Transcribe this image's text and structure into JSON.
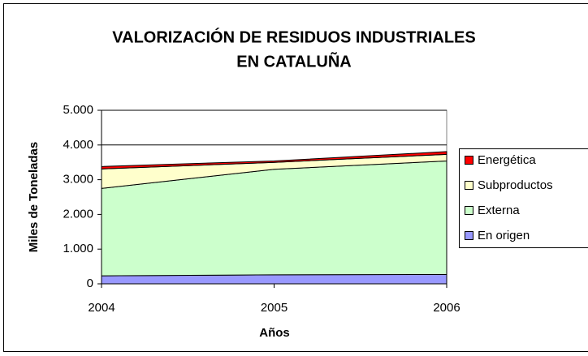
{
  "chart_data": {
    "type": "stacked_area",
    "title": [
      "VALORIZACIÓN DE RESIDUOS INDUSTRIALES",
      "EN CATALUÑA"
    ],
    "x_label": "Años",
    "y_label": "Miles de Toneladas",
    "categories": [
      "2004",
      "2005",
      "2006"
    ],
    "series": [
      {
        "name": "En origen",
        "color": "#9999ff",
        "values": [
          230,
          260,
          270
        ]
      },
      {
        "name": "Externa",
        "color": "#ccffcc",
        "values": [
          2520,
          3040,
          3270
        ]
      },
      {
        "name": "Subproductos",
        "color": "#ffffcc",
        "values": [
          560,
          200,
          190
        ]
      },
      {
        "name": "Energética",
        "color": "#ff0000",
        "values": [
          70,
          40,
          80
        ]
      }
    ],
    "ylim": [
      0,
      5000
    ],
    "yticks": [
      0,
      {
        "value": 1000,
        "label": "1.000"
      },
      {
        "value": 2000,
        "label": "2.000"
      },
      {
        "value": 3000,
        "label": "3.000"
      },
      {
        "value": 4000,
        "label": "4.000"
      },
      {
        "value": 5000,
        "label": "5.000"
      }
    ],
    "grid": true,
    "legend": "right"
  }
}
